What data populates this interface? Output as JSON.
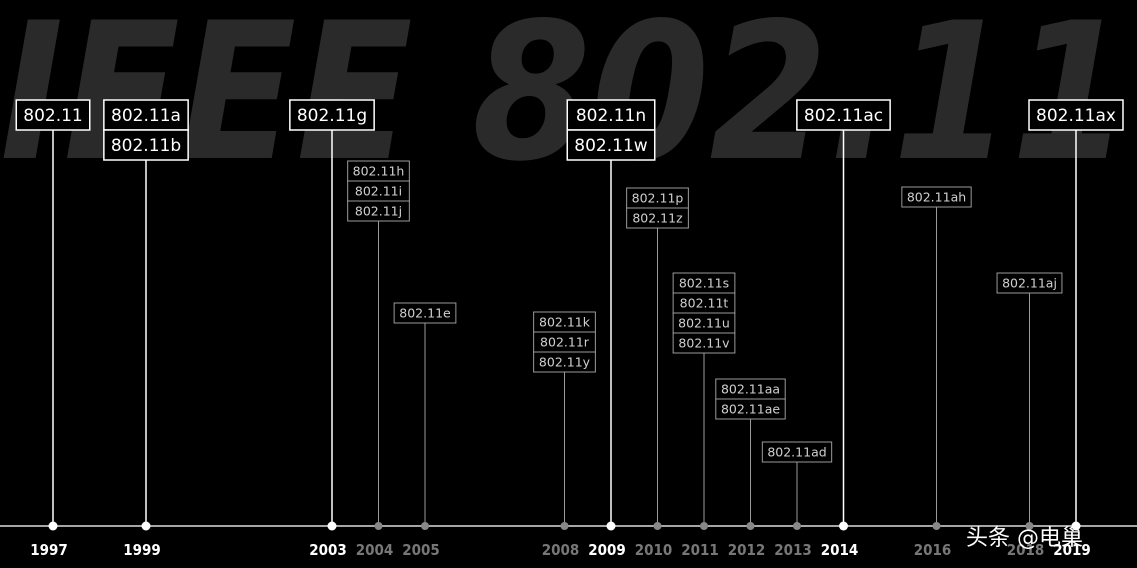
{
  "background_title": "IEEE 802.11",
  "events": [
    {
      "year": "1997",
      "standards": [
        "802.11"
      ]
    },
    {
      "year": "1999",
      "standards": [
        "802.11a",
        "802.11b"
      ]
    },
    {
      "year": "2003",
      "standards": [
        "802.11g"
      ]
    },
    {
      "year": "2004",
      "standards": [
        "802.11h",
        "802.11i",
        "802.11j"
      ]
    },
    {
      "year": "2005",
      "standards": [
        "802.11e"
      ]
    },
    {
      "year": "2008",
      "standards": [
        "802.11k",
        "802.11r",
        "802.11y"
      ]
    },
    {
      "year": "2009",
      "standards": [
        "802.11n",
        "802.11w"
      ]
    },
    {
      "year": "2010",
      "standards": [
        "802.11p",
        "802.11z"
      ]
    },
    {
      "year": "2011",
      "standards": [
        "802.11s",
        "802.11t",
        "802.11u",
        "802.11v"
      ]
    },
    {
      "year": "2012",
      "standards": [
        "802.11aa",
        "802.11ae"
      ]
    },
    {
      "year": "2013",
      "standards": [
        "802.11ad"
      ]
    },
    {
      "year": "2014",
      "standards": [
        "802.11ac"
      ]
    },
    {
      "year": "2016",
      "standards": [
        "802.11ah"
      ]
    },
    {
      "year": "2018",
      "standards": [
        "802.11aj"
      ]
    },
    {
      "year": "2019",
      "standards": [
        "802.11ax"
      ]
    }
  ],
  "watermark": "头条 @电巢"
}
